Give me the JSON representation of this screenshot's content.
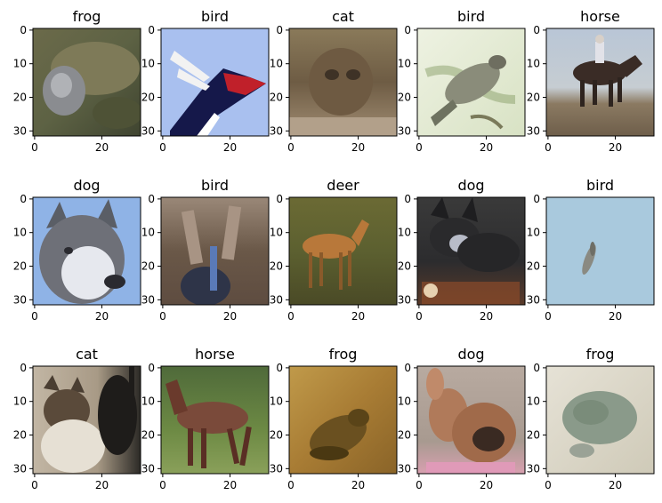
{
  "chart_data": {
    "type": "image-grid",
    "rows": 3,
    "cols": 5,
    "image_size": [
      32,
      32
    ],
    "xticks": [
      "0",
      "20"
    ],
    "yticks": [
      "0",
      "10",
      "20",
      "30"
    ],
    "grid": false,
    "panels": [
      {
        "title": "frog",
        "scene": "frog-closeup"
      },
      {
        "title": "bird",
        "scene": "woodpecker"
      },
      {
        "title": "cat",
        "scene": "tabby-cat"
      },
      {
        "title": "bird",
        "scene": "bird-on-branch"
      },
      {
        "title": "horse",
        "scene": "horse-and-rider"
      },
      {
        "title": "dog",
        "scene": "husky"
      },
      {
        "title": "bird",
        "scene": "ostrich-closeup"
      },
      {
        "title": "deer",
        "scene": "deer-in-grass"
      },
      {
        "title": "dog",
        "scene": "dark-dog"
      },
      {
        "title": "bird",
        "scene": "bird-in-sky"
      },
      {
        "title": "cat",
        "scene": "calico-cat"
      },
      {
        "title": "horse",
        "scene": "brown-horse"
      },
      {
        "title": "frog",
        "scene": "frog-on-ground"
      },
      {
        "title": "dog",
        "scene": "puppy"
      },
      {
        "title": "frog",
        "scene": "pale-frog"
      }
    ]
  }
}
